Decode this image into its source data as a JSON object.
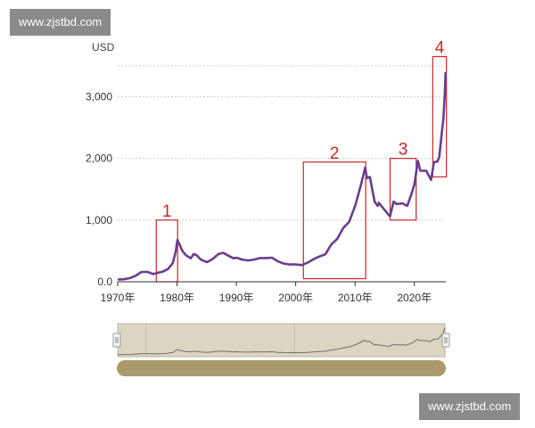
{
  "watermark": {
    "top_text": "www.zjstbd.com",
    "bottom_text": "www.zjstbd.com"
  },
  "colors": {
    "line": "#6a3d8f",
    "box": "#c62828",
    "grid": "#cfcfcf",
    "navigator_bg": "#dcd5c3",
    "scrollbar": "#ab9a6e"
  },
  "chart_data": {
    "type": "line",
    "title": "",
    "unit_label": "USD",
    "xlabel": "",
    "ylabel": "",
    "xlim": [
      1970,
      2025.3
    ],
    "ylim": [
      0,
      3700
    ],
    "grid": true,
    "y_ticks": [
      0,
      1000,
      2000,
      3000
    ],
    "y_tick_labels": [
      "0.0",
      "1,000",
      "2,000",
      "3,000"
    ],
    "x_ticks": [
      1970,
      1980,
      1990,
      2000,
      2010,
      2020
    ],
    "x_tick_labels": [
      "1970年",
      "1980年",
      "1990年",
      "2000年",
      "2010年",
      "2020年"
    ],
    "series": [
      {
        "x": [
          1970,
          1971,
          1972,
          1973,
          1974,
          1975,
          1976,
          1976.8,
          1977.5,
          1978.5,
          1979.3,
          1979.8,
          1980.05,
          1980.4,
          1980.9,
          1981.5,
          1982.3,
          1982.8,
          1983.3,
          1984,
          1985,
          1985.5,
          1986,
          1987,
          1987.8,
          1988.5,
          1989.5,
          1990,
          1991,
          1992,
          1993,
          1994,
          1995,
          1996,
          1997,
          1998,
          1999,
          2000,
          2001,
          2002,
          2003,
          2004,
          2005,
          2006,
          2007,
          2008,
          2009,
          2010,
          2011,
          2011.7,
          2012,
          2012.5,
          2013.3,
          2013.8,
          2014,
          2015,
          2015.9,
          2016.5,
          2017,
          2018,
          2018.8,
          2019.5,
          2020,
          2020.6,
          2021,
          2022,
          2022.8,
          2023.3,
          2023.9,
          2024.2,
          2024.6,
          2024.9,
          2025.1,
          2025.25
        ],
        "values": [
          36,
          41,
          58,
          97,
          159,
          161,
          125,
          148,
          160,
          208,
          307,
          500,
          680,
          610,
          500,
          430,
          380,
          450,
          430,
          360,
          320,
          340,
          370,
          450,
          470,
          430,
          380,
          390,
          360,
          345,
          360,
          385,
          385,
          390,
          330,
          295,
          280,
          280,
          270,
          310,
          365,
          410,
          445,
          605,
          695,
          870,
          970,
          1225,
          1570,
          1850,
          1680,
          1700,
          1300,
          1230,
          1280,
          1160,
          1060,
          1300,
          1260,
          1270,
          1230,
          1420,
          1580,
          1960,
          1800,
          1800,
          1650,
          1940,
          1950,
          2030,
          2390,
          2650,
          3000,
          3400
        ]
      }
    ],
    "annotations": [
      {
        "label": "1",
        "x_range": [
          1976.5,
          1980.1
        ],
        "y_range": [
          0,
          1000
        ]
      },
      {
        "label": "2",
        "x_range": [
          2001.3,
          2011.8
        ],
        "y_range": [
          50,
          1940
        ]
      },
      {
        "label": "3",
        "x_range": [
          2015.9,
          2020.3
        ],
        "y_range": [
          1000,
          2000
        ]
      },
      {
        "label": "4",
        "x_range": [
          2023.1,
          2025.4
        ],
        "y_range": [
          1700,
          3650
        ]
      }
    ]
  }
}
